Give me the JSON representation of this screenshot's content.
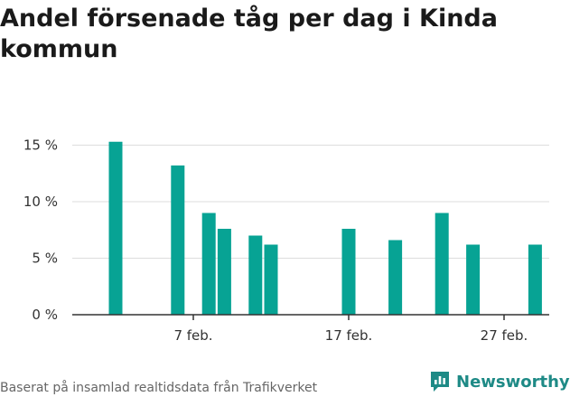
{
  "chart_data": {
    "type": "bar",
    "title": "Andel försenade tåg per dag i Kinda kommun",
    "x": [
      2,
      6,
      8,
      9,
      11,
      12,
      17,
      20,
      23,
      25,
      29
    ],
    "values": [
      15.3,
      13.2,
      9.0,
      7.6,
      7.0,
      6.2,
      7.6,
      6.6,
      9.0,
      6.2,
      6.2
    ],
    "xticks": [
      {
        "x": 7,
        "label": "7 feb."
      },
      {
        "x": 17,
        "label": "17 feb."
      },
      {
        "x": 27,
        "label": "27 feb."
      }
    ],
    "yticks": [
      {
        "value": 0,
        "label": "0 %"
      },
      {
        "value": 5,
        "label": "5 %"
      },
      {
        "value": 10,
        "label": "10 %"
      },
      {
        "value": 15,
        "label": "15 %"
      }
    ],
    "xlabel": "",
    "ylabel": "",
    "ylim": [
      0,
      16
    ],
    "grid": true,
    "bar_color": "#07a394"
  },
  "footer": {
    "source": "Baserat på insamlad realtidsdata från Trafikverket",
    "brand": "Newsworthy",
    "brand_color": "#1e8a86",
    "brand_icon": "bar-chart-logo-icon"
  }
}
